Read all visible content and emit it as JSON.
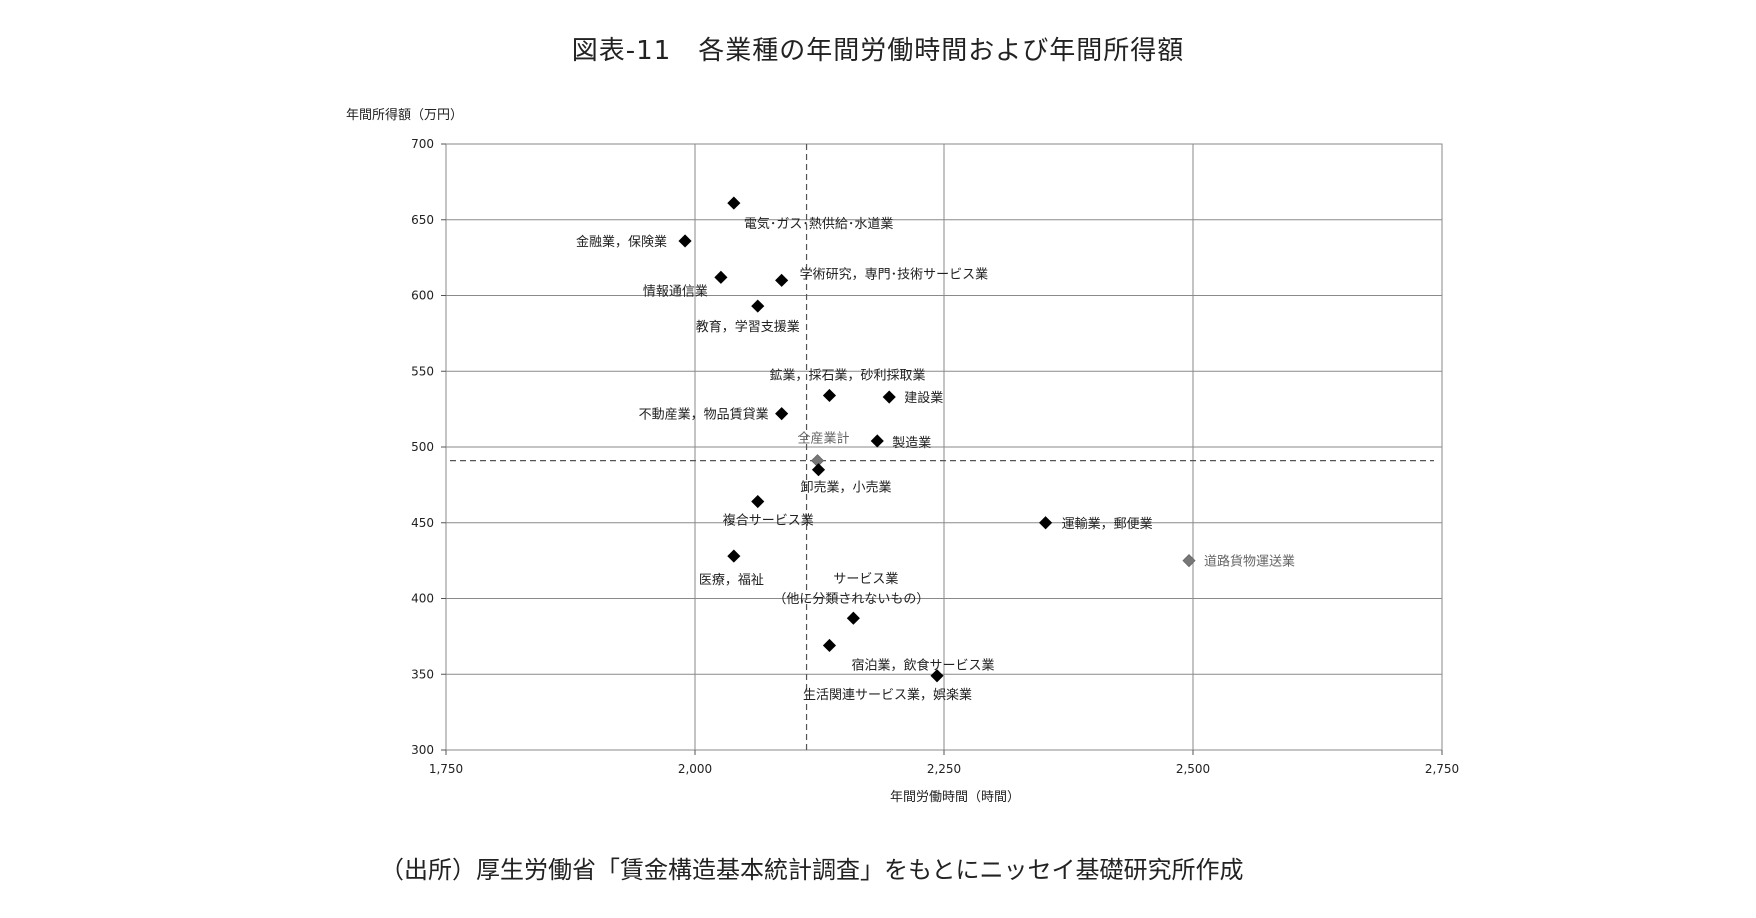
{
  "chart_data": {
    "type": "scatter",
    "title": "図表-11　各業種の年間労働時間および年間所得額",
    "ylabel": "年間所得額（万円）",
    "xlabel": "年間労働時間（時間）",
    "xlim": [
      1750,
      2750
    ],
    "ylim": [
      300,
      700
    ],
    "xticks": [
      1750,
      2000,
      2250,
      2500,
      2750
    ],
    "xtick_labels": [
      "1,750",
      "2,000",
      "2,250",
      "2,500",
      "2,750"
    ],
    "yticks": [
      300,
      350,
      400,
      450,
      500,
      550,
      600,
      650,
      700
    ],
    "ytick_labels": [
      "300",
      "350",
      "400",
      "450",
      "500",
      "550",
      "600",
      "650",
      "700"
    ],
    "grid": true,
    "reference_lines": {
      "x": 2112,
      "y": 491
    },
    "points": [
      {
        "label": "電気･ガス･熱供給･水道業",
        "x": 2039,
        "y": 661,
        "color": "#000000"
      },
      {
        "label": "金融業，保険業",
        "x": 1990,
        "y": 636,
        "color": "#000000"
      },
      {
        "label": "情報通信業",
        "x": 2026,
        "y": 612,
        "color": "#000000"
      },
      {
        "label": "学術研究，専門･技術サービス業",
        "x": 2087,
        "y": 610,
        "color": "#000000"
      },
      {
        "label": "教育，学習支援業",
        "x": 2063,
        "y": 593,
        "color": "#000000"
      },
      {
        "label": "鉱業，採石業，砂利採取業",
        "x": 2135,
        "y": 534,
        "color": "#000000"
      },
      {
        "label": "建設業",
        "x": 2195,
        "y": 533,
        "color": "#000000"
      },
      {
        "label": "不動産業，物品賃貸業",
        "x": 2087,
        "y": 522,
        "color": "#000000"
      },
      {
        "label": "製造業",
        "x": 2183,
        "y": 504,
        "color": "#000000"
      },
      {
        "label": "全産業計",
        "x": 2123,
        "y": 491,
        "color": "#777777"
      },
      {
        "label": "卸売業，小売業",
        "x": 2124,
        "y": 485,
        "color": "#000000"
      },
      {
        "label": "複合サービス業",
        "x": 2063,
        "y": 464,
        "color": "#000000"
      },
      {
        "label": "運輸業，郵便業",
        "x": 2352,
        "y": 450,
        "color": "#000000"
      },
      {
        "label": "道路貨物運送業",
        "x": 2496,
        "y": 425,
        "color": "#777777"
      },
      {
        "label": "医療，福祉",
        "x": 2039,
        "y": 428,
        "color": "#000000"
      },
      {
        "label": "サービス業",
        "label2": "（他に分類されないもの）",
        "x": 2159,
        "y": 387,
        "color": "#000000"
      },
      {
        "label": "宿泊業，飲食サービス業",
        "x": 2135,
        "y": 369,
        "color": "#000000"
      },
      {
        "label": "生活関連サービス業，娯楽業",
        "x": 2243,
        "y": 349,
        "color": "#000000"
      }
    ]
  },
  "source": "（出所）厚生労働省「賃金構造基本統計調査」をもとにニッセイ基礎研究所作成"
}
